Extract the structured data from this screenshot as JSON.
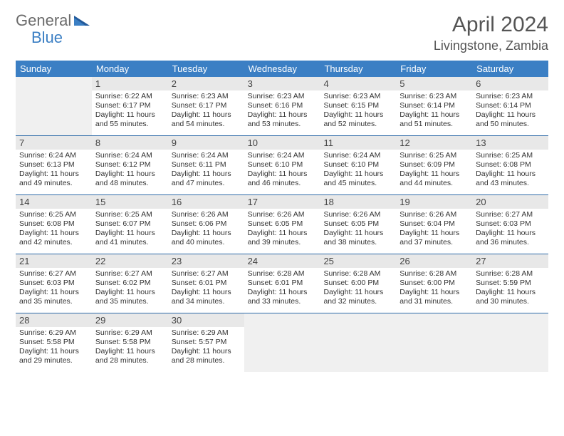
{
  "logo": {
    "gray": "General",
    "blue": "Blue"
  },
  "title": "April 2024",
  "location": "Livingstone, Zambia",
  "colors": {
    "header_bg": "#3b7fc4",
    "header_text": "#ffffff",
    "week_border": "#2d6aa8",
    "daynum_bg": "#e8e8e8",
    "empty_bg": "#f0f0f0",
    "body_text": "#333333",
    "title_text": "#555555"
  },
  "typography": {
    "title_fontsize": 30,
    "location_fontsize": 18,
    "dow_fontsize": 13,
    "daynum_fontsize": 13,
    "cell_fontsize": 10.5
  },
  "dow": [
    "Sunday",
    "Monday",
    "Tuesday",
    "Wednesday",
    "Thursday",
    "Friday",
    "Saturday"
  ],
  "weeks": [
    [
      null,
      {
        "n": "1",
        "sr": "Sunrise: 6:22 AM",
        "ss": "Sunset: 6:17 PM",
        "d1": "Daylight: 11 hours",
        "d2": "and 55 minutes."
      },
      {
        "n": "2",
        "sr": "Sunrise: 6:23 AM",
        "ss": "Sunset: 6:17 PM",
        "d1": "Daylight: 11 hours",
        "d2": "and 54 minutes."
      },
      {
        "n": "3",
        "sr": "Sunrise: 6:23 AM",
        "ss": "Sunset: 6:16 PM",
        "d1": "Daylight: 11 hours",
        "d2": "and 53 minutes."
      },
      {
        "n": "4",
        "sr": "Sunrise: 6:23 AM",
        "ss": "Sunset: 6:15 PM",
        "d1": "Daylight: 11 hours",
        "d2": "and 52 minutes."
      },
      {
        "n": "5",
        "sr": "Sunrise: 6:23 AM",
        "ss": "Sunset: 6:14 PM",
        "d1": "Daylight: 11 hours",
        "d2": "and 51 minutes."
      },
      {
        "n": "6",
        "sr": "Sunrise: 6:23 AM",
        "ss": "Sunset: 6:14 PM",
        "d1": "Daylight: 11 hours",
        "d2": "and 50 minutes."
      }
    ],
    [
      {
        "n": "7",
        "sr": "Sunrise: 6:24 AM",
        "ss": "Sunset: 6:13 PM",
        "d1": "Daylight: 11 hours",
        "d2": "and 49 minutes."
      },
      {
        "n": "8",
        "sr": "Sunrise: 6:24 AM",
        "ss": "Sunset: 6:12 PM",
        "d1": "Daylight: 11 hours",
        "d2": "and 48 minutes."
      },
      {
        "n": "9",
        "sr": "Sunrise: 6:24 AM",
        "ss": "Sunset: 6:11 PM",
        "d1": "Daylight: 11 hours",
        "d2": "and 47 minutes."
      },
      {
        "n": "10",
        "sr": "Sunrise: 6:24 AM",
        "ss": "Sunset: 6:10 PM",
        "d1": "Daylight: 11 hours",
        "d2": "and 46 minutes."
      },
      {
        "n": "11",
        "sr": "Sunrise: 6:24 AM",
        "ss": "Sunset: 6:10 PM",
        "d1": "Daylight: 11 hours",
        "d2": "and 45 minutes."
      },
      {
        "n": "12",
        "sr": "Sunrise: 6:25 AM",
        "ss": "Sunset: 6:09 PM",
        "d1": "Daylight: 11 hours",
        "d2": "and 44 minutes."
      },
      {
        "n": "13",
        "sr": "Sunrise: 6:25 AM",
        "ss": "Sunset: 6:08 PM",
        "d1": "Daylight: 11 hours",
        "d2": "and 43 minutes."
      }
    ],
    [
      {
        "n": "14",
        "sr": "Sunrise: 6:25 AM",
        "ss": "Sunset: 6:08 PM",
        "d1": "Daylight: 11 hours",
        "d2": "and 42 minutes."
      },
      {
        "n": "15",
        "sr": "Sunrise: 6:25 AM",
        "ss": "Sunset: 6:07 PM",
        "d1": "Daylight: 11 hours",
        "d2": "and 41 minutes."
      },
      {
        "n": "16",
        "sr": "Sunrise: 6:26 AM",
        "ss": "Sunset: 6:06 PM",
        "d1": "Daylight: 11 hours",
        "d2": "and 40 minutes."
      },
      {
        "n": "17",
        "sr": "Sunrise: 6:26 AM",
        "ss": "Sunset: 6:05 PM",
        "d1": "Daylight: 11 hours",
        "d2": "and 39 minutes."
      },
      {
        "n": "18",
        "sr": "Sunrise: 6:26 AM",
        "ss": "Sunset: 6:05 PM",
        "d1": "Daylight: 11 hours",
        "d2": "and 38 minutes."
      },
      {
        "n": "19",
        "sr": "Sunrise: 6:26 AM",
        "ss": "Sunset: 6:04 PM",
        "d1": "Daylight: 11 hours",
        "d2": "and 37 minutes."
      },
      {
        "n": "20",
        "sr": "Sunrise: 6:27 AM",
        "ss": "Sunset: 6:03 PM",
        "d1": "Daylight: 11 hours",
        "d2": "and 36 minutes."
      }
    ],
    [
      {
        "n": "21",
        "sr": "Sunrise: 6:27 AM",
        "ss": "Sunset: 6:03 PM",
        "d1": "Daylight: 11 hours",
        "d2": "and 35 minutes."
      },
      {
        "n": "22",
        "sr": "Sunrise: 6:27 AM",
        "ss": "Sunset: 6:02 PM",
        "d1": "Daylight: 11 hours",
        "d2": "and 35 minutes."
      },
      {
        "n": "23",
        "sr": "Sunrise: 6:27 AM",
        "ss": "Sunset: 6:01 PM",
        "d1": "Daylight: 11 hours",
        "d2": "and 34 minutes."
      },
      {
        "n": "24",
        "sr": "Sunrise: 6:28 AM",
        "ss": "Sunset: 6:01 PM",
        "d1": "Daylight: 11 hours",
        "d2": "and 33 minutes."
      },
      {
        "n": "25",
        "sr": "Sunrise: 6:28 AM",
        "ss": "Sunset: 6:00 PM",
        "d1": "Daylight: 11 hours",
        "d2": "and 32 minutes."
      },
      {
        "n": "26",
        "sr": "Sunrise: 6:28 AM",
        "ss": "Sunset: 6:00 PM",
        "d1": "Daylight: 11 hours",
        "d2": "and 31 minutes."
      },
      {
        "n": "27",
        "sr": "Sunrise: 6:28 AM",
        "ss": "Sunset: 5:59 PM",
        "d1": "Daylight: 11 hours",
        "d2": "and 30 minutes."
      }
    ],
    [
      {
        "n": "28",
        "sr": "Sunrise: 6:29 AM",
        "ss": "Sunset: 5:58 PM",
        "d1": "Daylight: 11 hours",
        "d2": "and 29 minutes."
      },
      {
        "n": "29",
        "sr": "Sunrise: 6:29 AM",
        "ss": "Sunset: 5:58 PM",
        "d1": "Daylight: 11 hours",
        "d2": "and 28 minutes."
      },
      {
        "n": "30",
        "sr": "Sunrise: 6:29 AM",
        "ss": "Sunset: 5:57 PM",
        "d1": "Daylight: 11 hours",
        "d2": "and 28 minutes."
      },
      null,
      null,
      null,
      null
    ]
  ]
}
